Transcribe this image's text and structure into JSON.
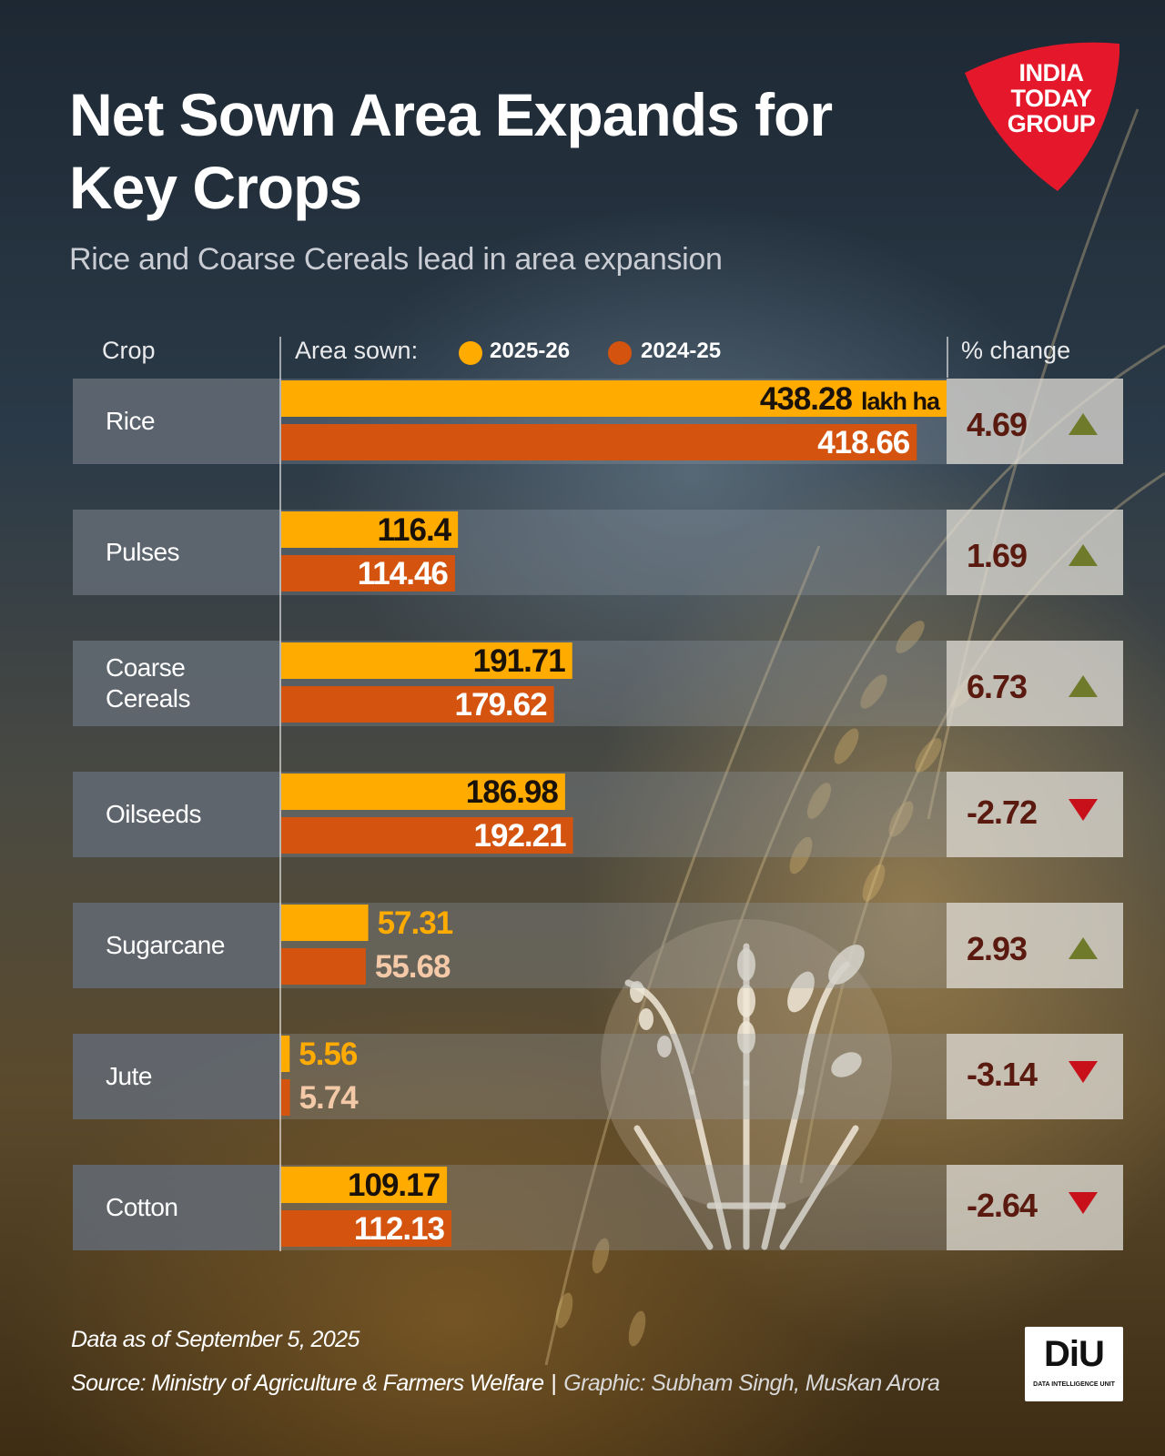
{
  "title": "Net Sown Area Expands for Key Crops",
  "subtitle": "Rice and Coarse Cereals lead in area expansion",
  "logo": {
    "text": "INDIA TODAY GROUP",
    "color": "#e5182b"
  },
  "headers": {
    "crop": "Crop",
    "area": "Area sown:",
    "pct": "% change"
  },
  "colors": {
    "current": "#ffab00",
    "previous": "#d4540f",
    "up_arrow": "#6f7a2a",
    "down_arrow": "#c8101a"
  },
  "chart_data": {
    "type": "bar",
    "unit": "lakh ha",
    "series": [
      {
        "name": "2025-26",
        "values": [
          438.28,
          116.4,
          191.71,
          186.98,
          57.31,
          5.56,
          109.17
        ]
      },
      {
        "name": "2024-25",
        "values": [
          418.66,
          114.46,
          179.62,
          192.21,
          55.68,
          5.74,
          112.13
        ]
      }
    ],
    "categories": [
      "Rice",
      "Pulses",
      "Coarse Cereals",
      "Oilseeds",
      "Sugarcane",
      "Jute",
      "Cotton"
    ],
    "labels_current": [
      "438.28",
      "116.4",
      "191.71",
      "186.98",
      "57.31",
      "5.56",
      "109.17"
    ],
    "labels_previous": [
      "418.66",
      "114.46",
      "179.62",
      "192.21",
      "55.68",
      "5.74",
      "112.13"
    ],
    "pct_change": [
      "4.69",
      "1.69",
      "6.73",
      "-2.72",
      "2.93",
      "-3.14",
      "-2.64"
    ],
    "direction": [
      "up",
      "up",
      "up",
      "down",
      "up",
      "down",
      "down"
    ],
    "xlim": [
      0,
      438.28
    ]
  },
  "footer": {
    "date": "Data as of September 5, 2025",
    "source": "Source: Ministry of Agriculture & Farmers Welfare",
    "separator": "|",
    "credit": "Graphic: Subham Singh, Muskan Arora"
  },
  "badge": {
    "text": "DiU",
    "sub": "DATA INTELLIGENCE UNIT"
  }
}
